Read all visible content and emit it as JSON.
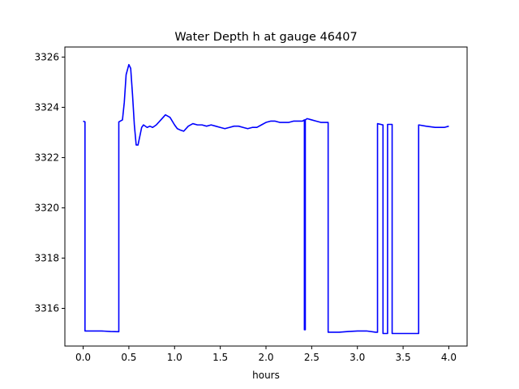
{
  "chart_data": {
    "type": "line",
    "title": "Water Depth h at gauge 46407",
    "xlabel": "hours",
    "ylabel": "",
    "xlim": [
      -0.2,
      4.2
    ],
    "ylim": [
      3314.5,
      3326.4
    ],
    "xticks": [
      0.0,
      0.5,
      1.0,
      1.5,
      2.0,
      2.5,
      3.0,
      3.5,
      4.0
    ],
    "xtick_labels": [
      "0.0",
      "0.5",
      "1.0",
      "1.5",
      "2.0",
      "2.5",
      "3.0",
      "3.5",
      "4.0"
    ],
    "yticks": [
      3316,
      3318,
      3320,
      3322,
      3324,
      3326
    ],
    "ytick_labels": [
      "3316",
      "3318",
      "3320",
      "3322",
      "3324",
      "3326"
    ],
    "grid": false,
    "series": [
      {
        "color": "#0000ff",
        "x": [
          0.0,
          0.02,
          0.02,
          0.1,
          0.2,
          0.3,
          0.39,
          0.39,
          0.43,
          0.45,
          0.47,
          0.5,
          0.52,
          0.54,
          0.56,
          0.58,
          0.6,
          0.62,
          0.64,
          0.66,
          0.7,
          0.73,
          0.76,
          0.8,
          0.85,
          0.9,
          0.95,
          1.0,
          1.03,
          1.06,
          1.1,
          1.15,
          1.2,
          1.25,
          1.3,
          1.35,
          1.4,
          1.45,
          1.5,
          1.55,
          1.6,
          1.65,
          1.7,
          1.75,
          1.8,
          1.85,
          1.9,
          1.95,
          2.0,
          2.05,
          2.1,
          2.15,
          2.2,
          2.25,
          2.3,
          2.35,
          2.4,
          2.42,
          2.42,
          2.43,
          2.43,
          2.45,
          2.5,
          2.55,
          2.6,
          2.68,
          2.68,
          2.8,
          2.9,
          3.0,
          3.1,
          3.2,
          3.22,
          3.22,
          3.28,
          3.28,
          3.33,
          3.33,
          3.38,
          3.38,
          3.5,
          3.67,
          3.67,
          3.75,
          3.85,
          3.95,
          4.0
        ],
        "y": [
          3323.45,
          3323.42,
          3315.1,
          3315.1,
          3315.1,
          3315.08,
          3315.07,
          3323.42,
          3323.5,
          3324.2,
          3325.3,
          3325.7,
          3325.55,
          3324.5,
          3323.3,
          3322.5,
          3322.5,
          3322.85,
          3323.2,
          3323.3,
          3323.2,
          3323.25,
          3323.2,
          3323.3,
          3323.5,
          3323.7,
          3323.6,
          3323.3,
          3323.15,
          3323.1,
          3323.05,
          3323.25,
          3323.35,
          3323.3,
          3323.3,
          3323.25,
          3323.3,
          3323.25,
          3323.2,
          3323.15,
          3323.2,
          3323.25,
          3323.25,
          3323.2,
          3323.15,
          3323.2,
          3323.2,
          3323.3,
          3323.4,
          3323.45,
          3323.45,
          3323.4,
          3323.4,
          3323.4,
          3323.45,
          3323.45,
          3323.45,
          3323.5,
          3315.15,
          3315.15,
          3323.5,
          3323.55,
          3323.5,
          3323.45,
          3323.4,
          3323.4,
          3315.05,
          3315.05,
          3315.08,
          3315.1,
          3315.1,
          3315.05,
          3315.05,
          3323.35,
          3323.3,
          3315.0,
          3315.0,
          3323.32,
          3323.32,
          3315.0,
          3315.0,
          3315.0,
          3323.3,
          3323.25,
          3323.2,
          3323.2,
          3323.25
        ]
      }
    ]
  }
}
